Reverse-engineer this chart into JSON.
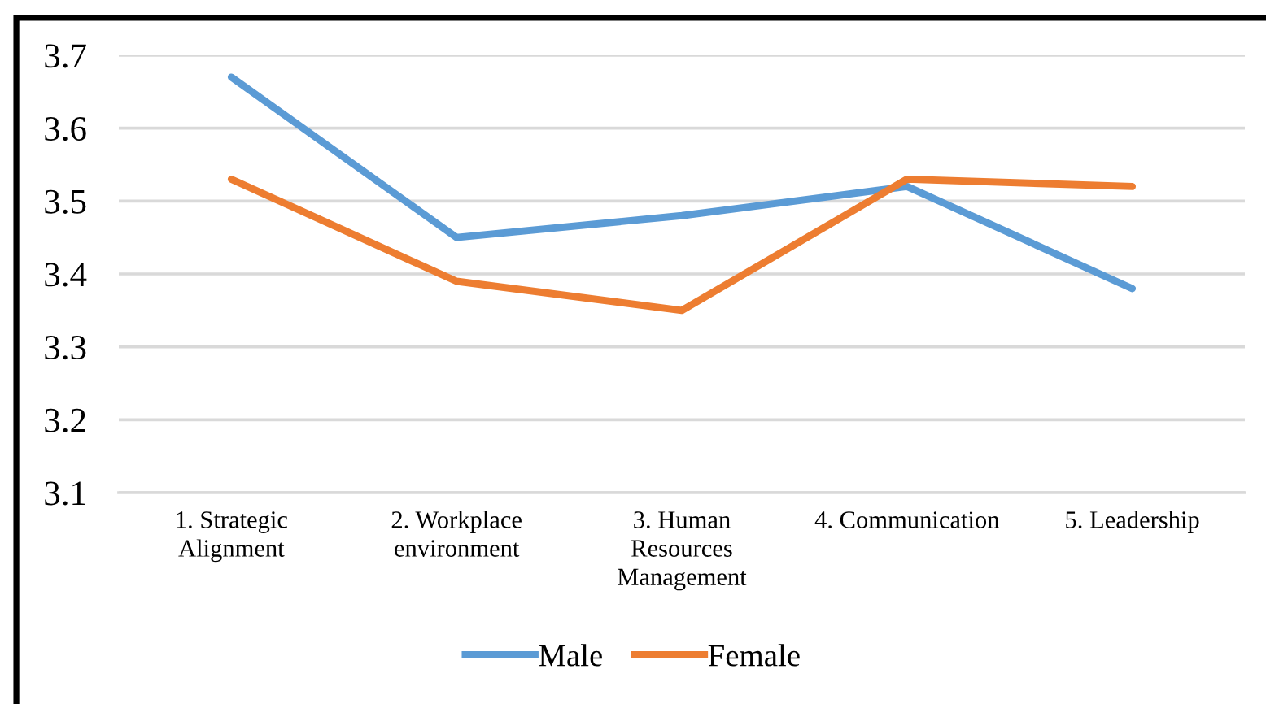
{
  "chart_data": {
    "type": "line",
    "categories": [
      "1. Strategic Alignment",
      "2. Workplace environment",
      "3. Human Resources Management",
      "4. Communication",
      "5. Leadership"
    ],
    "series": [
      {
        "name": "Male",
        "color": "#5b9bd5",
        "values": [
          3.67,
          3.45,
          3.48,
          3.52,
          3.38
        ]
      },
      {
        "name": "Female",
        "color": "#ed7d31",
        "values": [
          3.53,
          3.39,
          3.35,
          3.53,
          3.52
        ]
      }
    ],
    "ylim": [
      3.1,
      3.7
    ],
    "yticks": [
      3.1,
      3.2,
      3.3,
      3.4,
      3.5,
      3.6,
      3.7
    ],
    "grid": "y",
    "legend": "bottom",
    "marker": "none",
    "line_style": "solid"
  }
}
